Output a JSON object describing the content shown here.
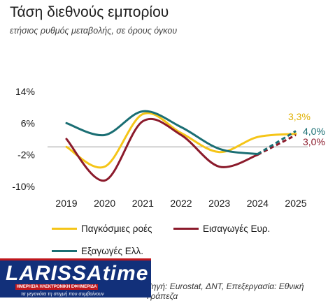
{
  "header": {
    "title": "Τάση διεθνούς εμπορίου",
    "subtitle": "ετήσιος ρυθμός μεταβολής, σε όρους όγκου"
  },
  "chart_data": {
    "type": "line",
    "title": "Τάση διεθνούς εμπορίου",
    "subtitle": "ετήσιος ρυθμός μεταβολής, σε όρους όγκου",
    "x": [
      "2019",
      "2020",
      "2021",
      "2022",
      "2023",
      "2024",
      "2025"
    ],
    "ytick_labels": [
      "14%",
      "6%",
      "-2%",
      "-10%"
    ],
    "yticks": [
      14,
      6,
      -2,
      -10
    ],
    "ylim": [
      -10,
      14
    ],
    "grid": false,
    "legend_position": "bottom",
    "series": [
      {
        "name": "Παγκόσμιες ροές",
        "color": "#F5C518",
        "values": [
          0.0,
          -5.0,
          8.3,
          3.5,
          -1.3,
          2.5,
          3.3
        ],
        "end_label": "3,3%",
        "projected_from_index": 6
      },
      {
        "name": "Εισαγωγές Ευρ.",
        "color": "#8B1A2B",
        "values": [
          2.0,
          -8.5,
          6.5,
          3.0,
          -5.0,
          -2.0,
          3.0
        ],
        "end_label": "3,0%",
        "projected_from_index": 5
      },
      {
        "name": "Εξαγωγές Ελλ.",
        "color": "#1A6E73",
        "values": [
          6.0,
          3.0,
          9.0,
          5.0,
          -0.5,
          -1.8,
          4.0
        ],
        "end_label": "4,0%",
        "projected_from_index": 5
      }
    ]
  },
  "legend": {
    "items": [
      {
        "label": "Παγκόσμιες ροές",
        "color": "#F5C518"
      },
      {
        "label": "Εισαγωγές Ευρ.",
        "color": "#8B1A2B"
      },
      {
        "label": "Εξαγωγές Ελλ.",
        "color": "#1A6E73"
      }
    ]
  },
  "source": {
    "text": "Πηγή: Eurostat, ΔΝΤ, Επεξεργασία: Εθνική Τράπεζα"
  },
  "logo": {
    "wordmark": "LARISSA",
    "wordmark_suffix": "time",
    "band": "ΗΜΕΡΗΣΙΑ ΗΛΕΚΤΡΟΝΙΚΗ ΕΦΗΜΕΡΙΔΑ",
    "tagline": "τα γεγονότα τη στιγμή που συμβαίνουν",
    "colors": {
      "background": "#12307a",
      "accent": "#c0161c"
    }
  }
}
